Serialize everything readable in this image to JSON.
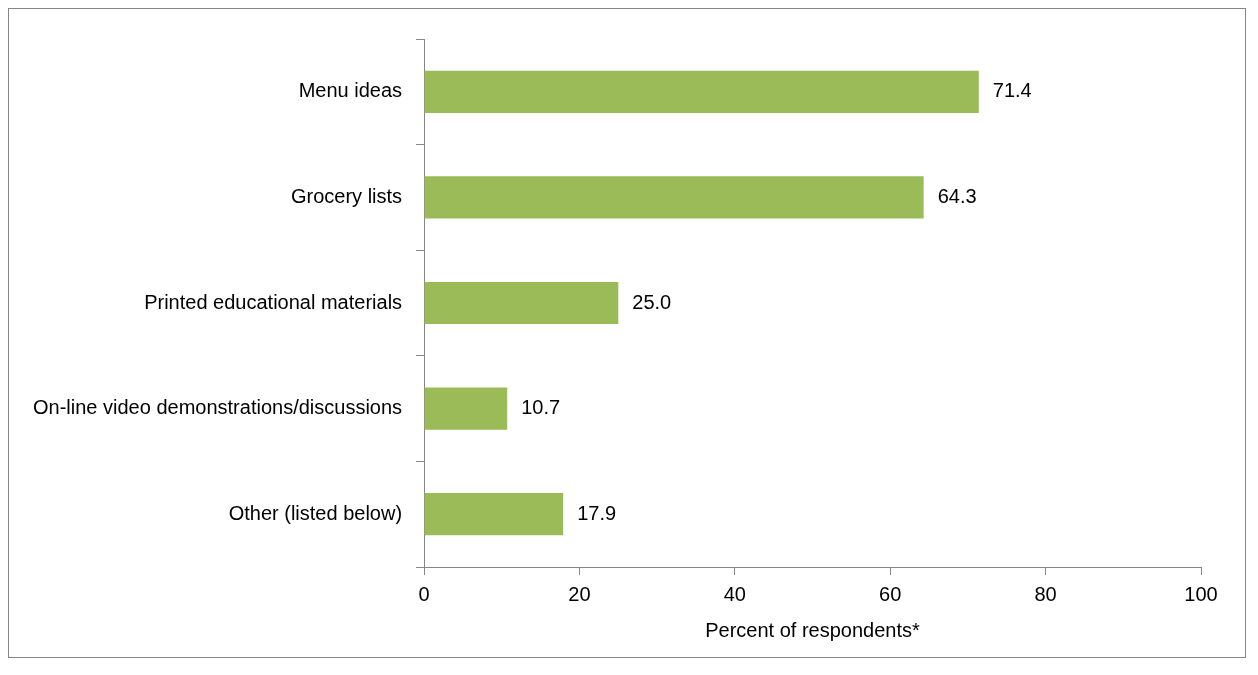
{
  "chart_data": {
    "type": "bar",
    "orientation": "horizontal",
    "xlabel": "Percent of respondents*",
    "categories": [
      "Menu ideas",
      "Grocery lists",
      "Printed educational materials",
      "On-line video demonstrations/discussions",
      "Other (listed below)"
    ],
    "values": [
      71.4,
      64.3,
      25.0,
      10.7,
      17.9
    ],
    "value_labels": [
      "71.4",
      "64.3",
      "25.0",
      "10.7",
      "17.9"
    ],
    "color": "#9bbb59",
    "xlim": [
      0,
      100
    ],
    "xticks": [
      0,
      20,
      40,
      60,
      80,
      100
    ],
    "grid": false
  }
}
